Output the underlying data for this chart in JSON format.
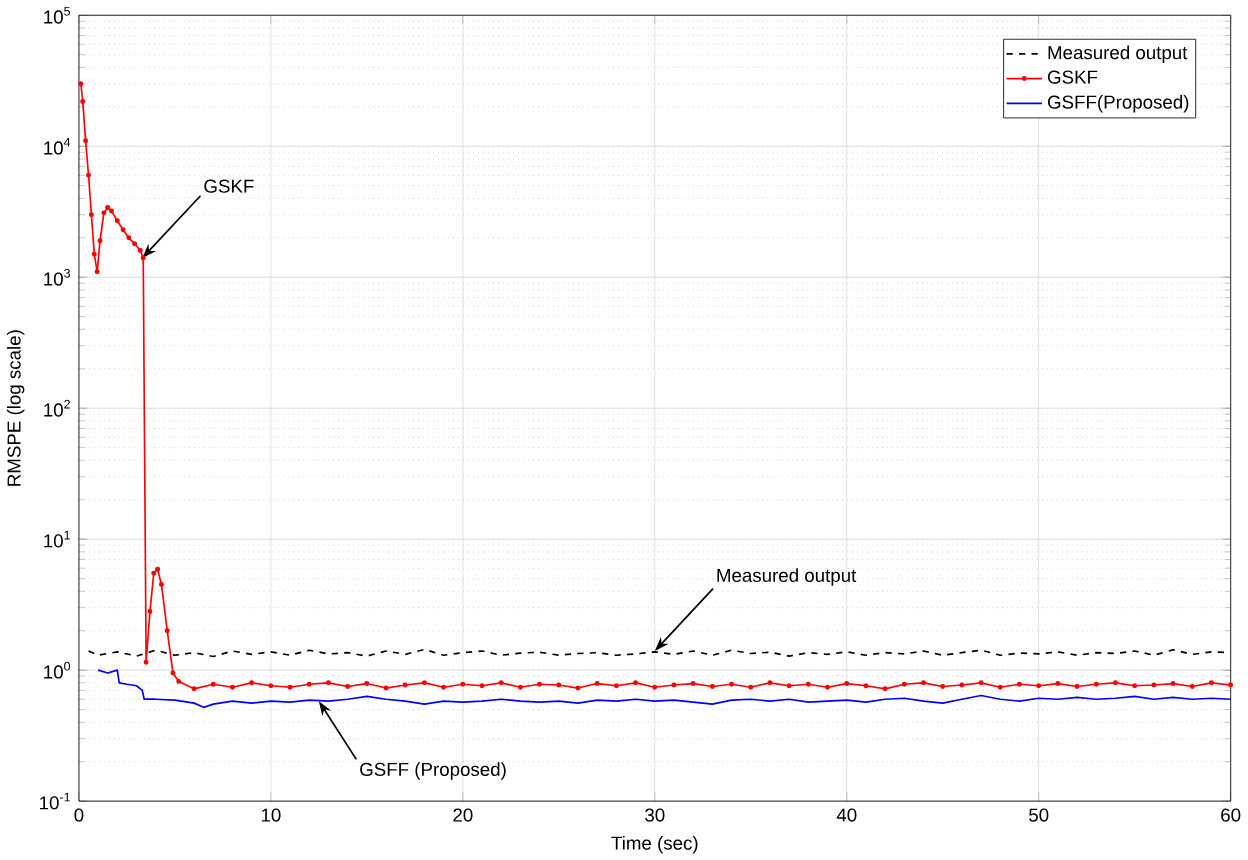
{
  "chart_data": {
    "type": "line",
    "xlabel": "Time (sec)",
    "ylabel": "RMSPE (log scale)",
    "log": "y",
    "grid": true,
    "legend": "top right",
    "xlim": [
      0,
      60
    ],
    "xticks": [
      0,
      10,
      20,
      30,
      40,
      50,
      60
    ],
    "ylim": [
      0.1,
      100000
    ],
    "yticks": [
      {
        "value": 0.1,
        "label": "10$^{-1}$"
      },
      {
        "value": 1,
        "label": "10$^{0}$"
      },
      {
        "value": 10,
        "label": "10$^{1}$"
      },
      {
        "value": 100,
        "label": "10$^{2}$"
      },
      {
        "value": 1000,
        "label": "10$^{3}$"
      },
      {
        "value": 10000,
        "label": "10$^{4}$"
      },
      {
        "value": 100000,
        "label": "10$^{5}$"
      }
    ],
    "series": [
      {
        "name": "Measured output",
        "color": "#000000",
        "line_style": "dashed",
        "marker": "none",
        "x": [
          0.5,
          1,
          2,
          3,
          4,
          5,
          6,
          7,
          8,
          9,
          10,
          11,
          12,
          13,
          14,
          15,
          16,
          17,
          18,
          19,
          20,
          21,
          22,
          23,
          24,
          25,
          26,
          27,
          28,
          29,
          30,
          31,
          32,
          33,
          34,
          35,
          36,
          37,
          38,
          39,
          40,
          41,
          42,
          43,
          44,
          45,
          46,
          47,
          48,
          49,
          50,
          51,
          52,
          53,
          54,
          55,
          56,
          57,
          58,
          59,
          60
        ],
        "values": [
          1.4,
          1.3,
          1.38,
          1.28,
          1.42,
          1.3,
          1.36,
          1.27,
          1.4,
          1.32,
          1.38,
          1.3,
          1.42,
          1.33,
          1.36,
          1.28,
          1.4,
          1.32,
          1.44,
          1.3,
          1.36,
          1.4,
          1.3,
          1.35,
          1.37,
          1.3,
          1.34,
          1.36,
          1.3,
          1.33,
          1.38,
          1.32,
          1.4,
          1.3,
          1.42,
          1.34,
          1.37,
          1.28,
          1.36,
          1.32,
          1.38,
          1.3,
          1.36,
          1.33,
          1.4,
          1.3,
          1.36,
          1.42,
          1.3,
          1.35,
          1.33,
          1.38,
          1.3,
          1.36,
          1.34,
          1.4,
          1.3,
          1.43,
          1.32,
          1.38,
          1.36
        ]
      },
      {
        "name": "GSKF",
        "color": "#ff0000",
        "line_style": "solid",
        "marker": "circle",
        "x": [
          0.1,
          0.2,
          0.35,
          0.5,
          0.65,
          0.8,
          0.95,
          1.1,
          1.3,
          1.5,
          1.7,
          2.0,
          2.3,
          2.6,
          2.9,
          3.2,
          3.35,
          3.5,
          3.7,
          3.9,
          4.1,
          4.3,
          4.6,
          4.9,
          5.2,
          6,
          7,
          8,
          9,
          10,
          11,
          12,
          13,
          14,
          15,
          16,
          17,
          18,
          19,
          20,
          21,
          22,
          23,
          24,
          25,
          26,
          27,
          28,
          29,
          30,
          31,
          32,
          33,
          34,
          35,
          36,
          37,
          38,
          39,
          40,
          41,
          42,
          43,
          44,
          45,
          46,
          47,
          48,
          49,
          50,
          51,
          52,
          53,
          54,
          55,
          56,
          57,
          58,
          59,
          60
        ],
        "values": [
          30000,
          22000,
          11000,
          6000,
          3000,
          1500,
          1100,
          1900,
          3100,
          3400,
          3200,
          2700,
          2300,
          2000,
          1800,
          1600,
          1400,
          1.15,
          2.8,
          5.5,
          5.9,
          4.5,
          2,
          0.95,
          0.82,
          0.72,
          0.78,
          0.74,
          0.8,
          0.76,
          0.74,
          0.78,
          0.8,
          0.75,
          0.79,
          0.73,
          0.77,
          0.8,
          0.74,
          0.78,
          0.76,
          0.8,
          0.74,
          0.78,
          0.77,
          0.73,
          0.79,
          0.76,
          0.8,
          0.74,
          0.77,
          0.79,
          0.75,
          0.78,
          0.74,
          0.8,
          0.76,
          0.78,
          0.74,
          0.79,
          0.76,
          0.72,
          0.78,
          0.8,
          0.75,
          0.77,
          0.8,
          0.74,
          0.78,
          0.76,
          0.79,
          0.75,
          0.78,
          0.8,
          0.76,
          0.77,
          0.79,
          0.75,
          0.8,
          0.77
        ]
      },
      {
        "name": "GSFF(Proposed)",
        "color": "#0000ff",
        "line_style": "solid",
        "marker": "none",
        "x": [
          1,
          1.5,
          2,
          2.1,
          2.5,
          3,
          3.3,
          3.4,
          4,
          5,
          6,
          6.5,
          7,
          8,
          9,
          10,
          11,
          12,
          13,
          14,
          15,
          16,
          17,
          18,
          19,
          20,
          21,
          22,
          23,
          24,
          25,
          26,
          27,
          28,
          29,
          30,
          31,
          32,
          33,
          34,
          35,
          36,
          37,
          38,
          39,
          40,
          41,
          42,
          43,
          44,
          45,
          46,
          47,
          48,
          49,
          50,
          51,
          52,
          53,
          54,
          55,
          56,
          57,
          58,
          59,
          60
        ],
        "values": [
          1.0,
          0.95,
          1.0,
          0.8,
          0.78,
          0.76,
          0.7,
          0.6,
          0.6,
          0.59,
          0.56,
          0.52,
          0.55,
          0.58,
          0.56,
          0.58,
          0.57,
          0.59,
          0.58,
          0.6,
          0.63,
          0.6,
          0.58,
          0.55,
          0.58,
          0.57,
          0.58,
          0.6,
          0.58,
          0.57,
          0.58,
          0.56,
          0.59,
          0.58,
          0.6,
          0.58,
          0.59,
          0.57,
          0.55,
          0.59,
          0.6,
          0.58,
          0.6,
          0.57,
          0.58,
          0.59,
          0.57,
          0.6,
          0.61,
          0.58,
          0.56,
          0.6,
          0.64,
          0.6,
          0.58,
          0.61,
          0.6,
          0.62,
          0.6,
          0.61,
          0.63,
          0.6,
          0.62,
          0.6,
          0.61,
          0.6
        ]
      }
    ],
    "annotations": [
      {
        "text": "GSKF",
        "x": 3.3,
        "y": 1400
      },
      {
        "text": "Measured output",
        "x": 30,
        "y": 1.4
      },
      {
        "text": "GSFF (Proposed)",
        "x": 12.5,
        "y": 0.58
      }
    ]
  }
}
